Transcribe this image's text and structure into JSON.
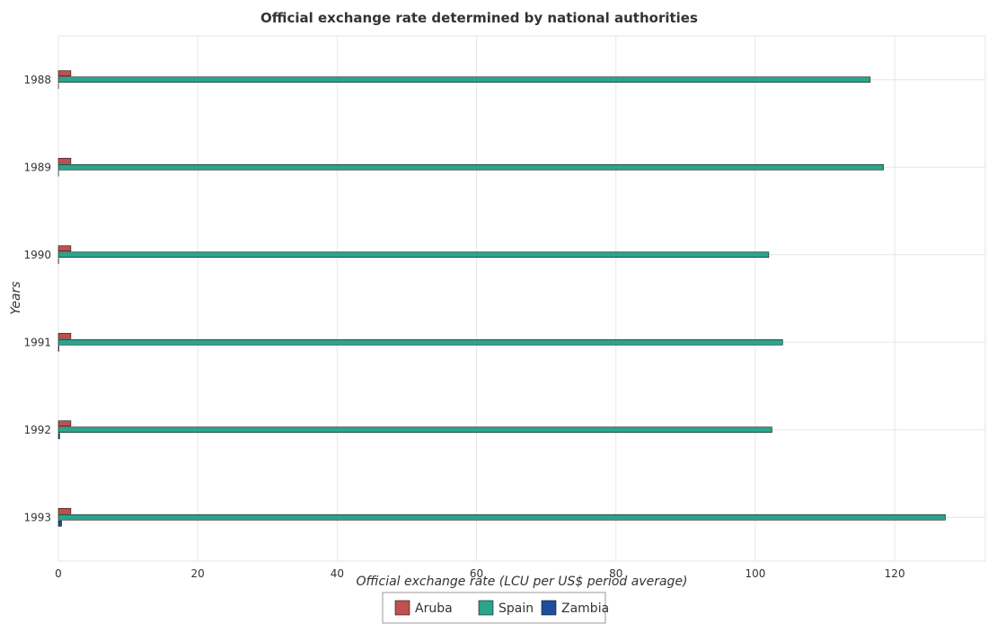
{
  "chart_data": {
    "type": "bar",
    "orientation": "horizontal",
    "title": "Official exchange rate determined by national authorities",
    "xlabel": "Official exchange rate (LCU per US$ period average)",
    "ylabel": "Years",
    "categories": [
      "1988",
      "1989",
      "1990",
      "1991",
      "1992",
      "1993"
    ],
    "xlim": [
      0,
      133
    ],
    "xticks": [
      0,
      20,
      40,
      60,
      80,
      100,
      120
    ],
    "grid": true,
    "legend_position": "bottom-center",
    "series": [
      {
        "name": "Aruba",
        "color": "#c0504d",
        "values": [
          1.79,
          1.79,
          1.79,
          1.79,
          1.79,
          1.79
        ]
      },
      {
        "name": "Spain",
        "color": "#2ca58d",
        "values": [
          116.49,
          118.38,
          101.93,
          103.91,
          102.38,
          127.26
        ]
      },
      {
        "name": "Zambia",
        "color": "#1f4e9c",
        "values": [
          0.008,
          0.013,
          0.031,
          0.065,
          0.172,
          0.453
        ]
      }
    ]
  }
}
